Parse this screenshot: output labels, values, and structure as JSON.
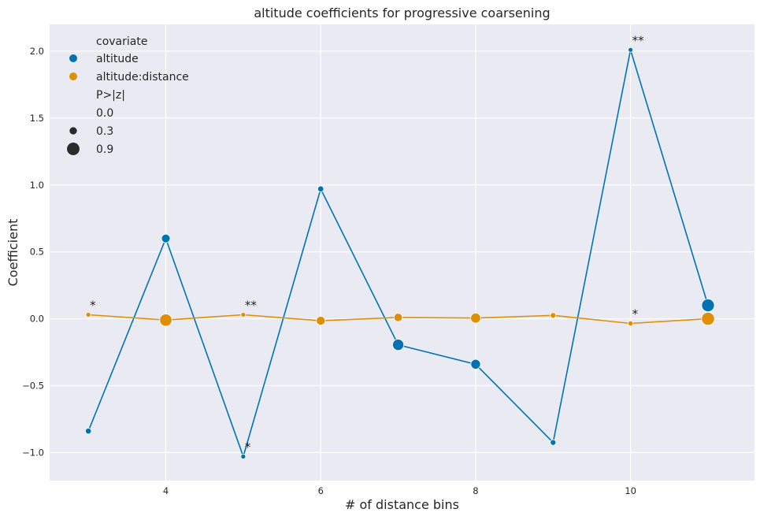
{
  "chart_data": {
    "type": "line",
    "title": "altitude coefficients for progressive coarsening",
    "xlabel": "# of distance bins",
    "ylabel": "Coefficient",
    "xlim": [
      2.5,
      11.6
    ],
    "ylim": [
      -1.21,
      2.2
    ],
    "xticks": [
      4,
      6,
      8,
      10
    ],
    "yticks": [
      -1.0,
      -0.5,
      0.0,
      0.5,
      1.0,
      1.5,
      2.0
    ],
    "ytick_labels": [
      "−1.0",
      "−0.5",
      "0.0",
      "0.5",
      "1.0",
      "1.5",
      "2.0"
    ],
    "grid": true,
    "background": "#EAEAF2",
    "legend": {
      "placement": "top-left",
      "hue_title": "covariate",
      "size_title": "P>|z|",
      "size_entries": [
        {
          "label": "0.0",
          "p": 0.0
        },
        {
          "label": "0.3",
          "p": 0.3
        },
        {
          "label": "0.9",
          "p": 0.9
        }
      ]
    },
    "series": [
      {
        "name": "altitude",
        "color": "#0173B2",
        "x": [
          3,
          4,
          5,
          6,
          7,
          8,
          9,
          10,
          11
        ],
        "y": [
          -0.84,
          0.6,
          -1.03,
          0.97,
          -0.195,
          -0.34,
          -0.925,
          2.01,
          0.1
        ],
        "p": [
          0.14,
          0.45,
          0.01,
          0.15,
          0.75,
          0.57,
          0.11,
          0.005,
          0.92
        ]
      },
      {
        "name": "altitude:distance",
        "color": "#DE8F05",
        "x": [
          3,
          4,
          5,
          6,
          7,
          8,
          9,
          10,
          11
        ],
        "y": [
          0.03,
          -0.01,
          0.03,
          -0.015,
          0.01,
          0.005,
          0.025,
          -0.035,
          0.0
        ],
        "p": [
          0.02,
          0.87,
          0.005,
          0.48,
          0.42,
          0.61,
          0.1,
          0.04,
          0.95
        ]
      }
    ],
    "annotations": [
      {
        "text": "*",
        "x": 3,
        "y": 0.03
      },
      {
        "text": "**",
        "x": 5,
        "y": 0.03
      },
      {
        "text": "*",
        "x": 5,
        "y": -1.03
      },
      {
        "text": "**",
        "x": 10,
        "y": 2.01
      },
      {
        "text": "*",
        "x": 10,
        "y": -0.035
      }
    ]
  }
}
